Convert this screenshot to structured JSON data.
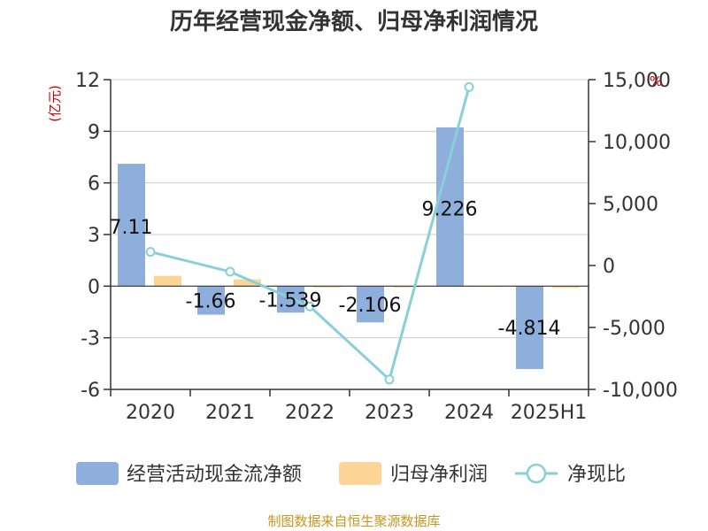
{
  "chart_data": {
    "type": "bar+line",
    "title": "历年经营现金净额、归母净利润情况",
    "categories": [
      "2020",
      "2021",
      "2022",
      "2023",
      "2024",
      "2025H1"
    ],
    "left_unit": "(亿元)",
    "right_unit": "%",
    "left_ylim": [
      -6,
      12
    ],
    "left_ticks": [
      "12",
      "9",
      "6",
      "3",
      "0",
      "-3",
      "-6"
    ],
    "right_ylim": [
      -10000,
      15000
    ],
    "right_ticks": [
      "15,000",
      "10,000",
      "5,000",
      "0",
      "-5,000",
      "-10,000"
    ],
    "series": [
      {
        "name": "经营活动现金流净额",
        "type": "bar",
        "color": "#8eaedb",
        "axis": "left",
        "values": [
          7.11,
          -1.66,
          -1.539,
          -2.106,
          9.226,
          -4.814
        ],
        "labels": [
          "7.11",
          "-1.66",
          "-1.539",
          "-2.106",
          "9.226",
          "-4.814"
        ]
      },
      {
        "name": "归母净利润",
        "type": "bar",
        "color": "#fcd597",
        "axis": "left",
        "values": [
          0.6,
          0.4,
          -0.03,
          -0.02,
          0.03,
          -0.1
        ]
      },
      {
        "name": "净现比",
        "type": "line",
        "color": "#88d0d8",
        "axis": "right",
        "values": [
          1100,
          -500,
          -3300,
          -9200,
          14400,
          null
        ]
      }
    ],
    "grid": true,
    "legend_position": "bottom"
  },
  "source": "制图数据来自恒生聚源数据库"
}
